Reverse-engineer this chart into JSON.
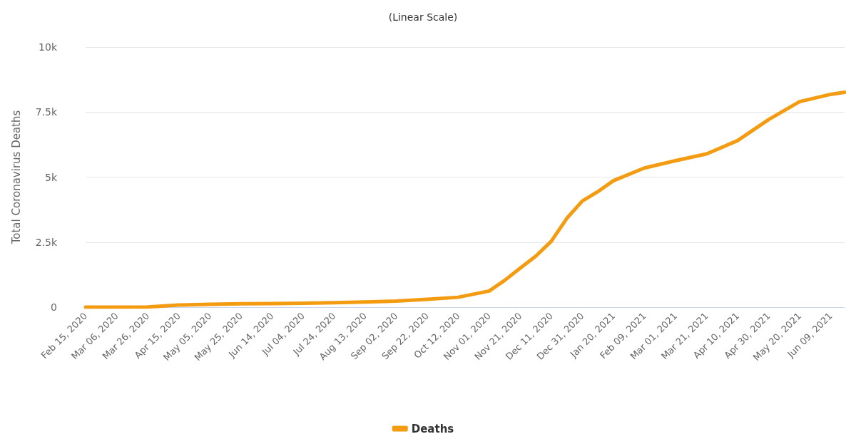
{
  "chart_data": {
    "type": "line",
    "title": "(Linear Scale)",
    "ylabel": "Total Coronavirus Deaths",
    "x": [
      "2020-02-15",
      "2020-03-06",
      "2020-03-26",
      "2020-04-15",
      "2020-05-05",
      "2020-05-25",
      "2020-06-14",
      "2020-07-04",
      "2020-07-24",
      "2020-08-13",
      "2020-09-02",
      "2020-09-22",
      "2020-10-12",
      "2020-11-01",
      "2020-11-11",
      "2020-11-21",
      "2020-12-01",
      "2020-12-11",
      "2020-12-21",
      "2020-12-31",
      "2021-01-10",
      "2021-01-20",
      "2021-02-09",
      "2021-03-01",
      "2021-03-21",
      "2021-04-10",
      "2021-04-30",
      "2021-05-20",
      "2021-06-09",
      "2021-06-18"
    ],
    "series": [
      {
        "name": "Deaths",
        "color": "#f39c12",
        "values": [
          0,
          0,
          5,
          80,
          110,
          130,
          140,
          150,
          170,
          200,
          230,
          300,
          380,
          620,
          1030,
          1500,
          1960,
          2530,
          3410,
          4080,
          4440,
          4860,
          5350,
          5630,
          5890,
          6400,
          7210,
          7900,
          8180,
          8260
        ]
      }
    ],
    "xlim": [
      "2020-02-15",
      "2021-06-18"
    ],
    "xticks": [
      {
        "value": "2020-02-15",
        "label": "Feb 15, 2020"
      },
      {
        "value": "2020-03-06",
        "label": "Mar 06, 2020"
      },
      {
        "value": "2020-03-26",
        "label": "Mar 26, 2020"
      },
      {
        "value": "2020-04-15",
        "label": "Apr 15, 2020"
      },
      {
        "value": "2020-05-05",
        "label": "May 05, 2020"
      },
      {
        "value": "2020-05-25",
        "label": "May 25, 2020"
      },
      {
        "value": "2020-06-14",
        "label": "Jun 14, 2020"
      },
      {
        "value": "2020-07-04",
        "label": "Jul 04, 2020"
      },
      {
        "value": "2020-07-24",
        "label": "Jul 24, 2020"
      },
      {
        "value": "2020-08-13",
        "label": "Aug 13, 2020"
      },
      {
        "value": "2020-09-02",
        "label": "Sep 02, 2020"
      },
      {
        "value": "2020-09-22",
        "label": "Sep 22, 2020"
      },
      {
        "value": "2020-10-12",
        "label": "Oct 12, 2020"
      },
      {
        "value": "2020-11-01",
        "label": "Nov 01, 2020"
      },
      {
        "value": "2020-11-21",
        "label": "Nov 21, 2020"
      },
      {
        "value": "2020-12-11",
        "label": "Dec 11, 2020"
      },
      {
        "value": "2020-12-31",
        "label": "Dec 31, 2020"
      },
      {
        "value": "2021-01-20",
        "label": "Jan 20, 2021"
      },
      {
        "value": "2021-02-09",
        "label": "Feb 09, 2021"
      },
      {
        "value": "2021-03-01",
        "label": "Mar 01, 2021"
      },
      {
        "value": "2021-03-21",
        "label": "Mar 21, 2021"
      },
      {
        "value": "2021-04-10",
        "label": "Apr 10, 2021"
      },
      {
        "value": "2021-04-30",
        "label": "Apr 30, 2021"
      },
      {
        "value": "2021-05-20",
        "label": "May 20, 2021"
      },
      {
        "value": "2021-06-09",
        "label": "Jun 09, 2021"
      }
    ],
    "ylim": [
      0,
      10000
    ],
    "yticks": [
      0,
      {
        "value": 2500,
        "label": "2.5k"
      },
      {
        "value": 5000,
        "label": "5k"
      },
      {
        "value": 7500,
        "label": "7.5k"
      },
      {
        "value": 10000,
        "label": "10k"
      }
    ],
    "grid": "y",
    "legend": "bottom",
    "marker": "none",
    "line_style": "solid"
  }
}
